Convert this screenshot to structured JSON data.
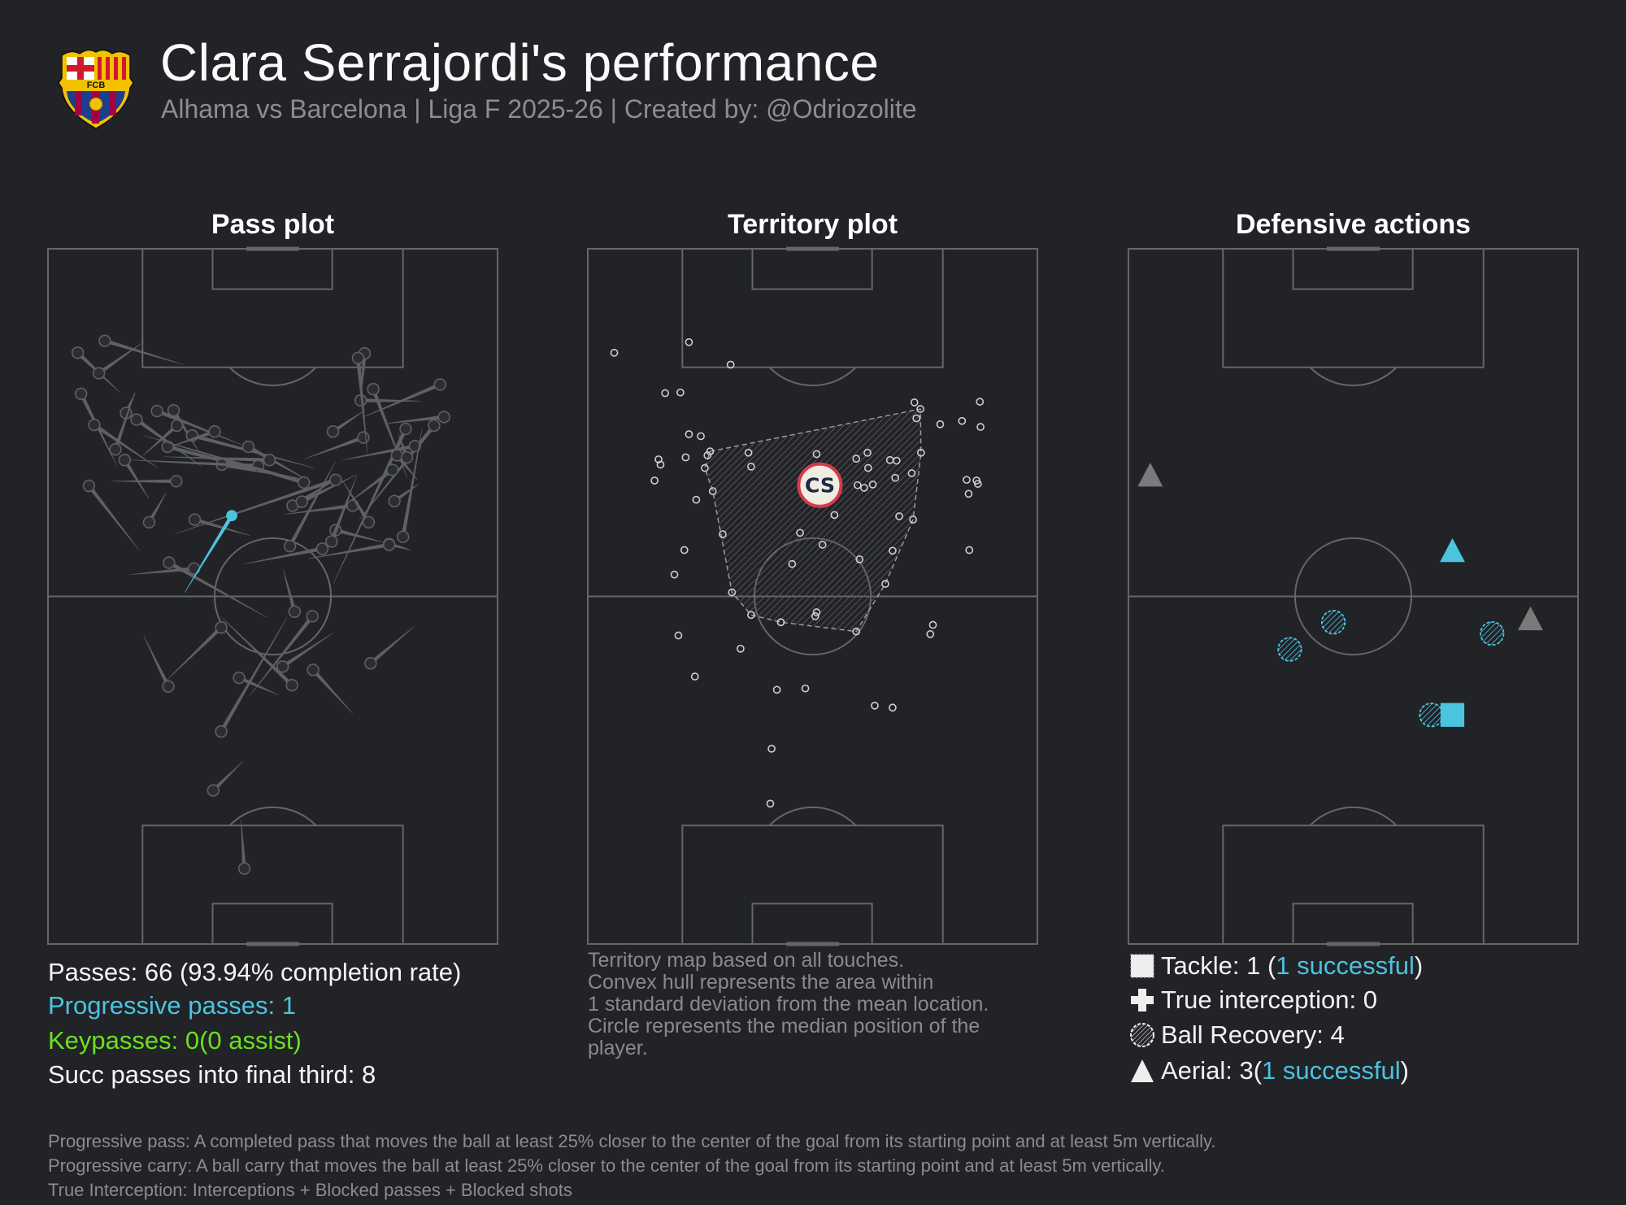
{
  "header": {
    "title": "Clara Serrajordi's performance",
    "subtitle": "Alhama vs Barcelona | Liga F 2025-26 | Created by: @Odriozolite",
    "logo_text": "FCB"
  },
  "colors": {
    "background": "#212327",
    "pitch_line": "#666666",
    "pass": "#5f6063",
    "progressive": "#4cc3df",
    "keypass": "#6be020",
    "highlight": "#4cc3df",
    "touch": "#cfcfcf",
    "median_fill": "#f0ece0",
    "median_stroke": "#d63a4a",
    "median_text": "#1d2a44"
  },
  "chart_data": [
    {
      "type": "scatter",
      "title": "Pass plot",
      "units": "metres (pitch 68 x 105, x = across, y = from top goal line)",
      "passes_note": "[start_x, start_y, end_x, end_y]",
      "passes": [
        [
          20.5,
          17.5,
          8.6,
          13.9
        ],
        [
          11.0,
          21.8,
          4.5,
          15.7
        ],
        [
          14.4,
          14.1,
          7.7,
          18.8
        ],
        [
          13.2,
          21.8,
          11.8,
          24.8
        ],
        [
          10.4,
          32.7,
          5.0,
          21.9
        ],
        [
          16.6,
          33.1,
          7.0,
          26.6
        ],
        [
          13.1,
          21.8,
          10.2,
          30.3
        ],
        [
          15.3,
          37.8,
          11.6,
          31.9
        ],
        [
          23.3,
          32.9,
          13.4,
          25.8
        ],
        [
          29.3,
          29.6,
          16.5,
          24.5
        ],
        [
          22.9,
          30.8,
          19.0,
          24.4
        ],
        [
          14.4,
          31.2,
          19.5,
          26.7
        ],
        [
          40.3,
          33.1,
          21.8,
          28.2
        ],
        [
          18.2,
          30.0,
          25.2,
          27.6
        ],
        [
          38.9,
          35.3,
          18.1,
          29.9
        ],
        [
          39.9,
          35.3,
          30.3,
          29.9
        ],
        [
          17.4,
          31.4,
          33.5,
          31.9
        ],
        [
          39.3,
          34.9,
          26.3,
          32.6
        ],
        [
          12.5,
          31.9,
          31.8,
          32.8
        ],
        [
          14.5,
          28.2,
          38.7,
          35.3
        ],
        [
          9.6,
          35.1,
          19.4,
          35.1
        ],
        [
          13.7,
          45.4,
          6.2,
          35.8
        ],
        [
          17.9,
          36.8,
          15.3,
          41.3
        ],
        [
          30.5,
          43.3,
          22.2,
          40.9
        ],
        [
          33.0,
          55.6,
          18.3,
          47.4
        ],
        [
          12.5,
          49.2,
          22.1,
          48.3
        ],
        [
          43.5,
          32.1,
          36.6,
          44.9
        ],
        [
          43.6,
          34.8,
          37.0,
          38.8
        ],
        [
          46.7,
          34.1,
          38.4,
          38.2
        ],
        [
          19.4,
          43.0,
          43.5,
          34.9
        ],
        [
          47.9,
          24.4,
          43.1,
          27.6
        ],
        [
          38.9,
          31.7,
          47.7,
          28.5
        ],
        [
          54.3,
          34.5,
          49.2,
          21.2
        ],
        [
          56.5,
          23.0,
          47.3,
          22.9
        ],
        [
          47.3,
          22.6,
          47.9,
          15.8
        ],
        [
          48.3,
          30.8,
          46.9,
          16.5
        ],
        [
          47.5,
          25.5,
          59.3,
          20.5
        ],
        [
          51.0,
          26.4,
          59.9,
          25.4
        ],
        [
          43.2,
          50.5,
          54.1,
          27.2
        ],
        [
          47.1,
          40.9,
          58.4,
          26.7
        ],
        [
          44.6,
          31.9,
          55.5,
          29.8
        ],
        [
          55.9,
          34.9,
          52.8,
          31.2
        ],
        [
          53.0,
          28.0,
          54.3,
          31.5
        ],
        [
          45.1,
          38.6,
          52.1,
          33.4
        ],
        [
          35.8,
          40.1,
          46.1,
          38.8
        ],
        [
          44.6,
          35.1,
          48.5,
          41.3
        ],
        [
          56.1,
          35.5,
          52.4,
          38.1
        ],
        [
          56.6,
          27.1,
          53.7,
          43.5
        ],
        [
          54.9,
          45.5,
          51.6,
          44.6
        ],
        [
          51.0,
          44.4,
          43.5,
          42.5
        ],
        [
          46.7,
          34.3,
          42.9,
          44.2
        ],
        [
          29.7,
          47.6,
          41.5,
          45.3
        ],
        [
          39.3,
          46.8,
          51.6,
          44.7
        ],
        [
          35.6,
          48.5,
          37.3,
          54.8
        ],
        [
          30.5,
          67.5,
          40.0,
          55.5
        ],
        [
          18.0,
          65.1,
          26.2,
          57.2
        ],
        [
          14.5,
          58.5,
          18.2,
          66.1
        ],
        [
          43.0,
          58.1,
          35.5,
          63.1
        ],
        [
          26.2,
          55.6,
          36.9,
          65.9
        ],
        [
          34.9,
          67.4,
          28.9,
          64.8
        ],
        [
          46.1,
          70.2,
          40.1,
          63.6
        ],
        [
          55.3,
          57.1,
          48.8,
          62.6
        ],
        [
          36.2,
          55.6,
          26.2,
          72.9
        ],
        [
          29.5,
          77.4,
          25.0,
          81.8
        ],
        [
          29.2,
          86.3,
          29.7,
          93.6
        ]
      ],
      "progressive_passes": [
        [
          20.7,
          51.9,
          27.8,
          40.3
        ]
      ],
      "stats": {
        "passes": "Passes: 66 (93.94% completion rate)",
        "progressive": "Progressive passes: 1",
        "keypasses": "Keypasses: 0(0 assist)",
        "final_third": "Succ passes into final third: 8"
      }
    },
    {
      "type": "scatter",
      "title": "Territory plot",
      "units": "metres (pitch 68 x 105)",
      "touches": [
        [
          4.0,
          15.7
        ],
        [
          15.3,
          14.1
        ],
        [
          21.6,
          17.5
        ],
        [
          11.7,
          21.8
        ],
        [
          14.0,
          21.7
        ],
        [
          49.4,
          23.2
        ],
        [
          50.3,
          24.2
        ],
        [
          49.7,
          25.6
        ],
        [
          59.3,
          23.1
        ],
        [
          53.3,
          26.5
        ],
        [
          56.6,
          26.0
        ],
        [
          59.4,
          26.9
        ],
        [
          15.3,
          28.0
        ],
        [
          17.1,
          28.3
        ],
        [
          18.5,
          30.6
        ],
        [
          18.1,
          31.2
        ],
        [
          17.7,
          33.1
        ],
        [
          10.7,
          31.8
        ],
        [
          11.0,
          32.6
        ],
        [
          14.8,
          31.5
        ],
        [
          10.1,
          35.0
        ],
        [
          24.3,
          30.8
        ],
        [
          24.7,
          32.9
        ],
        [
          34.6,
          31.0
        ],
        [
          40.6,
          31.7
        ],
        [
          42.3,
          30.8
        ],
        [
          42.4,
          33.1
        ],
        [
          45.7,
          31.9
        ],
        [
          46.7,
          32.0
        ],
        [
          50.4,
          30.8
        ],
        [
          49.0,
          33.9
        ],
        [
          46.5,
          34.6
        ],
        [
          40.8,
          35.7
        ],
        [
          41.8,
          36.1
        ],
        [
          43.1,
          35.6
        ],
        [
          57.3,
          34.9
        ],
        [
          58.8,
          35.0
        ],
        [
          59.0,
          35.5
        ],
        [
          57.6,
          37.0
        ],
        [
          18.9,
          36.6
        ],
        [
          16.4,
          37.9
        ],
        [
          37.3,
          40.2
        ],
        [
          47.1,
          40.4
        ],
        [
          49.2,
          40.9
        ],
        [
          20.4,
          43.1
        ],
        [
          32.1,
          42.9
        ],
        [
          35.5,
          44.7
        ],
        [
          14.6,
          45.5
        ],
        [
          57.7,
          45.5
        ],
        [
          30.9,
          47.6
        ],
        [
          41.1,
          46.9
        ],
        [
          46.1,
          45.6
        ],
        [
          13.1,
          49.2
        ],
        [
          21.8,
          51.9
        ],
        [
          45.0,
          50.6
        ],
        [
          24.7,
          55.3
        ],
        [
          29.2,
          56.4
        ],
        [
          34.6,
          54.9
        ],
        [
          34.4,
          55.5
        ],
        [
          40.6,
          57.8
        ],
        [
          52.2,
          56.8
        ],
        [
          51.8,
          58.2
        ],
        [
          13.7,
          58.4
        ],
        [
          23.1,
          60.4
        ],
        [
          16.2,
          64.6
        ],
        [
          28.6,
          66.6
        ],
        [
          32.9,
          66.4
        ],
        [
          43.4,
          69.0
        ],
        [
          46.1,
          69.3
        ],
        [
          27.8,
          75.5
        ],
        [
          27.6,
          83.8
        ]
      ],
      "hull": [
        [
          18.5,
          30.6
        ],
        [
          50.3,
          24.2
        ],
        [
          50.4,
          30.8
        ],
        [
          49.2,
          40.9
        ],
        [
          45.0,
          50.6
        ],
        [
          40.6,
          57.8
        ],
        [
          29.2,
          56.4
        ],
        [
          24.7,
          55.3
        ],
        [
          21.8,
          51.9
        ],
        [
          18.9,
          36.6
        ],
        [
          17.7,
          33.1
        ]
      ],
      "median": {
        "x": 35.1,
        "y": 35.7,
        "label": "CS"
      },
      "note": [
        "Territory map based on all touches.",
        "Convex hull represents the area within",
        "1 standard deviation from the mean location.",
        "Circle represents the median position of the",
        "player."
      ]
    },
    {
      "type": "scatter",
      "title": "Defensive actions",
      "units": "metres (pitch 68 x 105)",
      "aerials": [
        {
          "x": 3.3,
          "y": 34.2,
          "successful": false
        },
        {
          "x": 49.0,
          "y": 45.6,
          "successful": true
        },
        {
          "x": 60.8,
          "y": 55.9,
          "successful": false
        }
      ],
      "ball_recoveries": [
        [
          31.0,
          56.4
        ],
        [
          24.4,
          60.5
        ],
        [
          55.0,
          58.1
        ],
        [
          45.8,
          70.4
        ]
      ],
      "tackles": [
        {
          "x": 49.0,
          "y": 70.4,
          "successful": true
        }
      ],
      "interceptions": [],
      "legend": {
        "tackle_prefix": "Tackle: 1 (",
        "tackle_success": "1 successful",
        "tackle_suffix": ")",
        "interception": "True interception: 0",
        "recovery": "Ball Recovery: 4",
        "aerial_prefix": "Aerial: 3(",
        "aerial_success": "1 successful",
        "aerial_suffix": ")"
      }
    }
  ],
  "footnotes": [
    "Progressive pass: A completed pass that moves the ball at least 25% closer to the center of the goal from its starting point and at least 5m vertically.",
    "Progressive carry: A ball carry that moves the ball at least 25% closer to the center of the goal from its starting point and at least 5m vertically.",
    "True Interception: Interceptions + Blocked passes + Blocked shots"
  ]
}
